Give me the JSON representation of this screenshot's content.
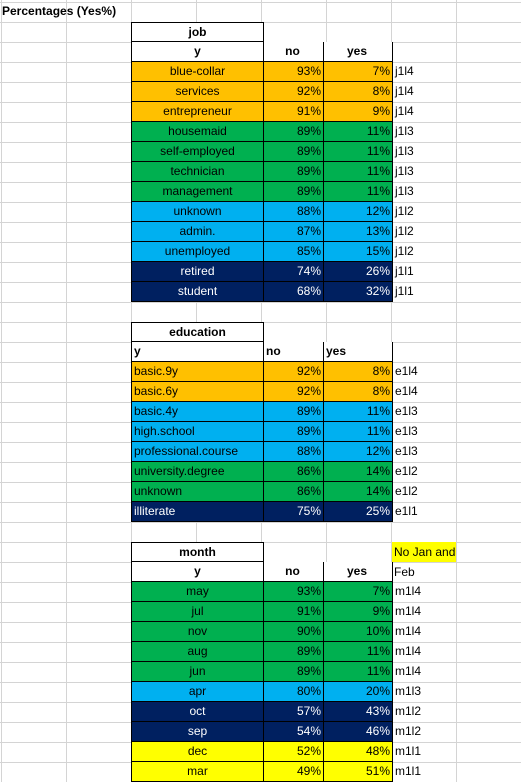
{
  "title": "Percentages (Yes%)",
  "colors": {
    "orange": "#ffc000",
    "green": "#00b050",
    "lightblue": "#00b0f0",
    "darknavy": "#002060",
    "yellow": "#ffff00"
  },
  "tables": [
    {
      "key": "job",
      "header": "job",
      "col_y": "y",
      "col_no": "no",
      "col_yes": "yes",
      "rows": [
        {
          "label": "blue-collar",
          "no": "93%",
          "yes": "7%",
          "tag": "j1l4",
          "color": "#ffc000"
        },
        {
          "label": "services",
          "no": "92%",
          "yes": "8%",
          "tag": "j1l4",
          "color": "#ffc000"
        },
        {
          "label": "entrepreneur",
          "no": "91%",
          "yes": "9%",
          "tag": "j1l4",
          "color": "#ffc000"
        },
        {
          "label": "housemaid",
          "no": "89%",
          "yes": "11%",
          "tag": "j1l3",
          "color": "#00b050"
        },
        {
          "label": "self-employed",
          "no": "89%",
          "yes": "11%",
          "tag": "j1l3",
          "color": "#00b050"
        },
        {
          "label": "technician",
          "no": "89%",
          "yes": "11%",
          "tag": "j1l3",
          "color": "#00b050"
        },
        {
          "label": "management",
          "no": "89%",
          "yes": "11%",
          "tag": "j1l3",
          "color": "#00b050"
        },
        {
          "label": "unknown",
          "no": "88%",
          "yes": "12%",
          "tag": "j1l2",
          "color": "#00b0f0"
        },
        {
          "label": "admin.",
          "no": "87%",
          "yes": "13%",
          "tag": "j1l2",
          "color": "#00b0f0"
        },
        {
          "label": "unemployed",
          "no": "85%",
          "yes": "15%",
          "tag": "j1l2",
          "color": "#00b0f0"
        },
        {
          "label": "retired",
          "no": "74%",
          "yes": "26%",
          "tag": "j1l1",
          "color": "#002060"
        },
        {
          "label": "student",
          "no": "68%",
          "yes": "32%",
          "tag": "j1l1",
          "color": "#002060"
        }
      ]
    },
    {
      "key": "education",
      "header": "education",
      "col_y": "y",
      "col_no": "no",
      "col_yes": "yes",
      "rows": [
        {
          "label": "basic.9y",
          "no": "92%",
          "yes": "8%",
          "tag": "e1l4",
          "color": "#ffc000"
        },
        {
          "label": "basic.6y",
          "no": "92%",
          "yes": "8%",
          "tag": "e1l4",
          "color": "#ffc000"
        },
        {
          "label": "basic.4y",
          "no": "89%",
          "yes": "11%",
          "tag": "e1l3",
          "color": "#00b0f0"
        },
        {
          "label": "high.school",
          "no": "89%",
          "yes": "11%",
          "tag": "e1l3",
          "color": "#00b0f0"
        },
        {
          "label": "professional.course",
          "no": "88%",
          "yes": "12%",
          "tag": "e1l3",
          "color": "#00b0f0"
        },
        {
          "label": "university.degree",
          "no": "86%",
          "yes": "14%",
          "tag": "e1l2",
          "color": "#00b050"
        },
        {
          "label": "unknown",
          "no": "86%",
          "yes": "14%",
          "tag": "e1l2",
          "color": "#00b050"
        },
        {
          "label": "illiterate",
          "no": "75%",
          "yes": "25%",
          "tag": "e1l1",
          "color": "#002060"
        }
      ]
    },
    {
      "key": "month",
      "header": "month",
      "col_y": "y",
      "col_no": "no",
      "col_yes": "yes",
      "note": "No Jan and Feb",
      "rows": [
        {
          "label": "may",
          "no": "93%",
          "yes": "7%",
          "tag": "m1l4",
          "color": "#00b050"
        },
        {
          "label": "jul",
          "no": "91%",
          "yes": "9%",
          "tag": "m1l4",
          "color": "#00b050"
        },
        {
          "label": "nov",
          "no": "90%",
          "yes": "10%",
          "tag": "m1l4",
          "color": "#00b050"
        },
        {
          "label": "aug",
          "no": "89%",
          "yes": "11%",
          "tag": "m1l4",
          "color": "#00b050"
        },
        {
          "label": "jun",
          "no": "89%",
          "yes": "11%",
          "tag": "m1l4",
          "color": "#00b050"
        },
        {
          "label": "apr",
          "no": "80%",
          "yes": "20%",
          "tag": "m1l3",
          "color": "#00b0f0"
        },
        {
          "label": "oct",
          "no": "57%",
          "yes": "43%",
          "tag": "m1l2",
          "color": "#002060"
        },
        {
          "label": "sep",
          "no": "54%",
          "yes": "46%",
          "tag": "m1l2",
          "color": "#002060"
        },
        {
          "label": "dec",
          "no": "52%",
          "yes": "48%",
          "tag": "m1l1",
          "color": "#ffff00"
        },
        {
          "label": "mar",
          "no": "49%",
          "yes": "51%",
          "tag": "m1l1",
          "color": "#ffff00"
        }
      ]
    }
  ]
}
